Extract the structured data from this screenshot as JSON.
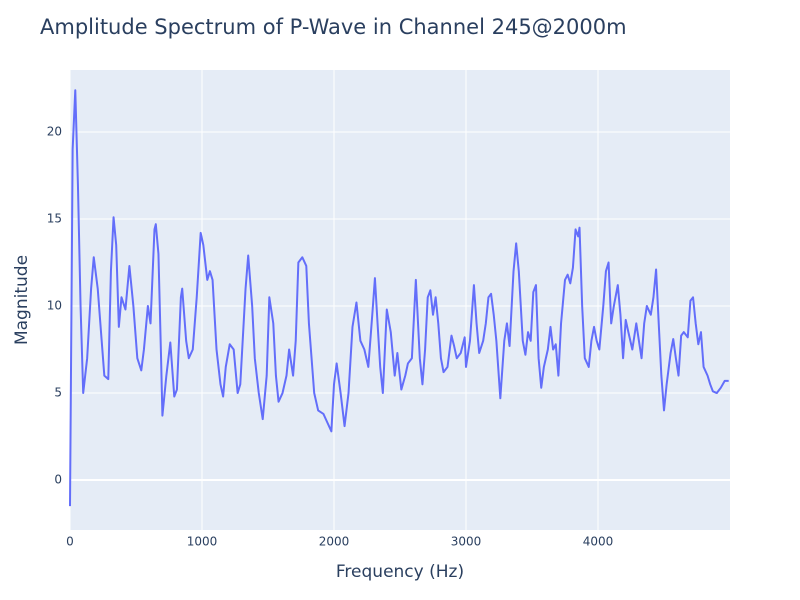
{
  "chart_data": {
    "type": "line",
    "title": "Amplitude Spectrum of P-Wave in Channel 245@2000m",
    "x_label": "Frequency (Hz)",
    "y_label": "Magnitude",
    "xlim": [
      0,
      5000
    ],
    "ylim": [
      -2.87,
      23.56
    ],
    "xticks": [
      0,
      1000,
      2000,
      3000,
      4000
    ],
    "yticks": [
      0,
      5,
      10,
      15,
      20
    ],
    "grid": true,
    "x": [
      0,
      20,
      40,
      60,
      80,
      100,
      130,
      160,
      180,
      210,
      240,
      260,
      290,
      310,
      330,
      350,
      370,
      390,
      420,
      450,
      480,
      510,
      540,
      560,
      590,
      610,
      640,
      650,
      670,
      690,
      700,
      730,
      760,
      790,
      810,
      840,
      850,
      880,
      900,
      930,
      960,
      990,
      1010,
      1040,
      1060,
      1080,
      1110,
      1140,
      1160,
      1180,
      1210,
      1240,
      1270,
      1290,
      1330,
      1350,
      1380,
      1400,
      1430,
      1460,
      1490,
      1510,
      1540,
      1560,
      1580,
      1610,
      1640,
      1660,
      1690,
      1710,
      1730,
      1760,
      1790,
      1810,
      1830,
      1850,
      1880,
      1920,
      1950,
      1980,
      2000,
      2020,
      2050,
      2080,
      2110,
      2140,
      2170,
      2200,
      2230,
      2260,
      2290,
      2310,
      2330,
      2350,
      2370,
      2400,
      2430,
      2460,
      2480,
      2510,
      2540,
      2560,
      2590,
      2620,
      2650,
      2670,
      2690,
      2710,
      2730,
      2750,
      2770,
      2790,
      2810,
      2830,
      2860,
      2890,
      2910,
      2930,
      2960,
      2990,
      3000,
      3030,
      3060,
      3080,
      3100,
      3130,
      3150,
      3170,
      3190,
      3210,
      3230,
      3260,
      3290,
      3310,
      3330,
      3360,
      3380,
      3400,
      3430,
      3450,
      3470,
      3490,
      3510,
      3530,
      3550,
      3570,
      3590,
      3620,
      3640,
      3660,
      3680,
      3700,
      3720,
      3750,
      3770,
      3790,
      3810,
      3830,
      3850,
      3860,
      3880,
      3900,
      3930,
      3950,
      3970,
      3990,
      4010,
      4040,
      4060,
      4080,
      4100,
      4120,
      4150,
      4170,
      4190,
      4210,
      4230,
      4260,
      4290,
      4310,
      4330,
      4350,
      4370,
      4400,
      4420,
      4440,
      4460,
      4480,
      4500,
      4520,
      4550,
      4570,
      4590,
      4610,
      4630,
      4650,
      4680,
      4700,
      4720,
      4740,
      4760,
      4780,
      4800,
      4830,
      4850,
      4870,
      4900,
      4930,
      4960,
      4990
    ],
    "series": [
      {
        "name": "Magnitude",
        "color": "#636efa",
        "values": [
          -1.5,
          19,
          22.4,
          17,
          10,
          5,
          7,
          11,
          12.8,
          11,
          8,
          6,
          5.8,
          12,
          15.1,
          13.5,
          8.8,
          10.5,
          9.8,
          12.3,
          10,
          7,
          6.3,
          7.5,
          10,
          9,
          14.4,
          14.7,
          13,
          7,
          3.7,
          6,
          7.9,
          4.8,
          5.2,
          10.5,
          11,
          8,
          7,
          7.5,
          10.5,
          14.2,
          13.5,
          11.5,
          12,
          11.5,
          7.5,
          5.5,
          4.8,
          6.5,
          7.8,
          7.5,
          5,
          5.5,
          11,
          12.9,
          10,
          7,
          5,
          3.5,
          6,
          10.5,
          9,
          6,
          4.5,
          5,
          6,
          7.5,
          6,
          8,
          12.5,
          12.8,
          12.3,
          9,
          7,
          5,
          4,
          3.8,
          3.3,
          2.8,
          5.5,
          6.7,
          5,
          3.1,
          5,
          8.8,
          10.2,
          8,
          7.5,
          6.5,
          9.5,
          11.6,
          9,
          6.5,
          5,
          9.8,
          8.5,
          6,
          7.3,
          5.2,
          6,
          6.7,
          7,
          11.5,
          7,
          5.5,
          7.5,
          10.5,
          10.9,
          9.5,
          10.5,
          9,
          7,
          6.2,
          6.5,
          8.3,
          7.7,
          7,
          7.3,
          8.2,
          6.5,
          8,
          11.2,
          9,
          7.3,
          8,
          9,
          10.5,
          10.7,
          9.5,
          8,
          4.7,
          8,
          9,
          7.7,
          12,
          13.6,
          12,
          8,
          7.2,
          8.5,
          8,
          10.8,
          11.2,
          7,
          5.3,
          6.5,
          7.5,
          8.8,
          7.5,
          7.8,
          6,
          9,
          11.5,
          11.8,
          11.3,
          12.2,
          14.4,
          14,
          14.5,
          10,
          7,
          6.5,
          8,
          8.8,
          8,
          7.5,
          10,
          12,
          12.5,
          9,
          10,
          11.2,
          9.5,
          7,
          9.2,
          8.5,
          7.5,
          9,
          8,
          7,
          9,
          10,
          9.5,
          10.5,
          12.1,
          9,
          6,
          4,
          5.5,
          7.3,
          8.1,
          7,
          6,
          8.3,
          8.5,
          8.2,
          10.3,
          10.5,
          9,
          7.8,
          8.5,
          6.5,
          6,
          5.5,
          5.1,
          5,
          5.3,
          5.7,
          5.7
        ]
      }
    ]
  }
}
